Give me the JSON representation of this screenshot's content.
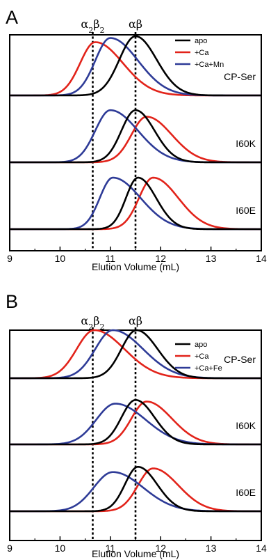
{
  "chart_data": [
    {
      "type": "line",
      "panel_label": "A",
      "xlabel": "Elution Volume (mL)",
      "xlim": [
        9,
        14
      ],
      "x_ticks": [
        "9",
        "10",
        "11",
        "12",
        "13",
        "14"
      ],
      "reference_lines": [
        {
          "text": "α₂β₂",
          "x": 10.65
        },
        {
          "text": "αβ",
          "x": 11.5
        }
      ],
      "legend": {
        "position": "top-right",
        "entries": [
          "apo",
          "+Ca",
          "+Ca+Mn"
        ]
      },
      "groups": [
        {
          "label": "CP-Ser",
          "series": [
            {
              "name": "apo",
              "color": "#000000",
              "peak": 11.5,
              "height": 1.0,
              "left_width": 0.32,
              "right_width": 0.42
            },
            {
              "name": "+Ca",
              "color": "#e2231a",
              "peak": 10.7,
              "height": 0.9,
              "left_width": 0.3,
              "right_width": 0.55
            },
            {
              "name": "+Ca+Mn",
              "color": "#2e3b97",
              "peak": 11.0,
              "height": 0.97,
              "left_width": 0.3,
              "right_width": 0.55
            }
          ]
        },
        {
          "label": "I60K",
          "series": [
            {
              "name": "apo",
              "color": "#000000",
              "peak": 11.5,
              "height": 0.88,
              "left_width": 0.28,
              "right_width": 0.38
            },
            {
              "name": "+Ca",
              "color": "#e2231a",
              "peak": 11.72,
              "height": 0.77,
              "left_width": 0.3,
              "right_width": 0.5
            },
            {
              "name": "+Ca+Mn",
              "color": "#2e3b97",
              "peak": 11.0,
              "height": 0.88,
              "left_width": 0.3,
              "right_width": 0.55
            }
          ]
        },
        {
          "label": "I60E",
          "series": [
            {
              "name": "apo",
              "color": "#000000",
              "peak": 11.55,
              "height": 0.87,
              "left_width": 0.24,
              "right_width": 0.36
            },
            {
              "name": "+Ca",
              "color": "#e2231a",
              "peak": 11.85,
              "height": 0.87,
              "left_width": 0.28,
              "right_width": 0.5
            },
            {
              "name": "+Ca+Mn",
              "color": "#2e3b97",
              "peak": 11.05,
              "height": 0.87,
              "left_width": 0.26,
              "right_width": 0.55
            }
          ]
        }
      ]
    },
    {
      "type": "line",
      "panel_label": "B",
      "xlabel": "Elution Volume (mL)",
      "xlim": [
        9,
        14
      ],
      "x_ticks": [
        "9",
        "10",
        "11",
        "12",
        "13",
        "14"
      ],
      "reference_lines": [
        {
          "text": "α₂β₂",
          "x": 10.65
        },
        {
          "text": "αβ",
          "x": 11.5
        }
      ],
      "legend": {
        "position": "top-right",
        "entries": [
          "apo",
          "+Ca",
          "+Ca+Fe"
        ]
      },
      "groups": [
        {
          "label": "CP-Ser",
          "series": [
            {
              "name": "apo",
              "color": "#000000",
              "peak": 11.52,
              "height": 0.92,
              "left_width": 0.3,
              "right_width": 0.42
            },
            {
              "name": "+Ca",
              "color": "#e2231a",
              "peak": 10.68,
              "height": 0.92,
              "left_width": 0.35,
              "right_width": 0.6
            },
            {
              "name": "+Ca+Fe",
              "color": "#2e3b97",
              "peak": 11.05,
              "height": 0.92,
              "left_width": 0.35,
              "right_width": 0.6
            }
          ]
        },
        {
          "label": "I60K",
          "series": [
            {
              "name": "apo",
              "color": "#000000",
              "peak": 11.5,
              "height": 0.85,
              "left_width": 0.28,
              "right_width": 0.38
            },
            {
              "name": "+Ca",
              "color": "#e2231a",
              "peak": 11.72,
              "height": 0.82,
              "left_width": 0.3,
              "right_width": 0.5
            },
            {
              "name": "+Ca+Fe",
              "color": "#2e3b97",
              "peak": 11.1,
              "height": 0.78,
              "left_width": 0.38,
              "right_width": 0.6
            }
          ]
        },
        {
          "label": "I60E",
          "series": [
            {
              "name": "apo",
              "color": "#000000",
              "peak": 11.55,
              "height": 0.85,
              "left_width": 0.26,
              "right_width": 0.38
            },
            {
              "name": "+Ca",
              "color": "#e2231a",
              "peak": 11.85,
              "height": 0.82,
              "left_width": 0.3,
              "right_width": 0.5
            },
            {
              "name": "+Ca+Fe",
              "color": "#2e3b97",
              "peak": 11.05,
              "height": 0.75,
              "left_width": 0.38,
              "right_width": 0.6
            }
          ]
        }
      ]
    }
  ]
}
